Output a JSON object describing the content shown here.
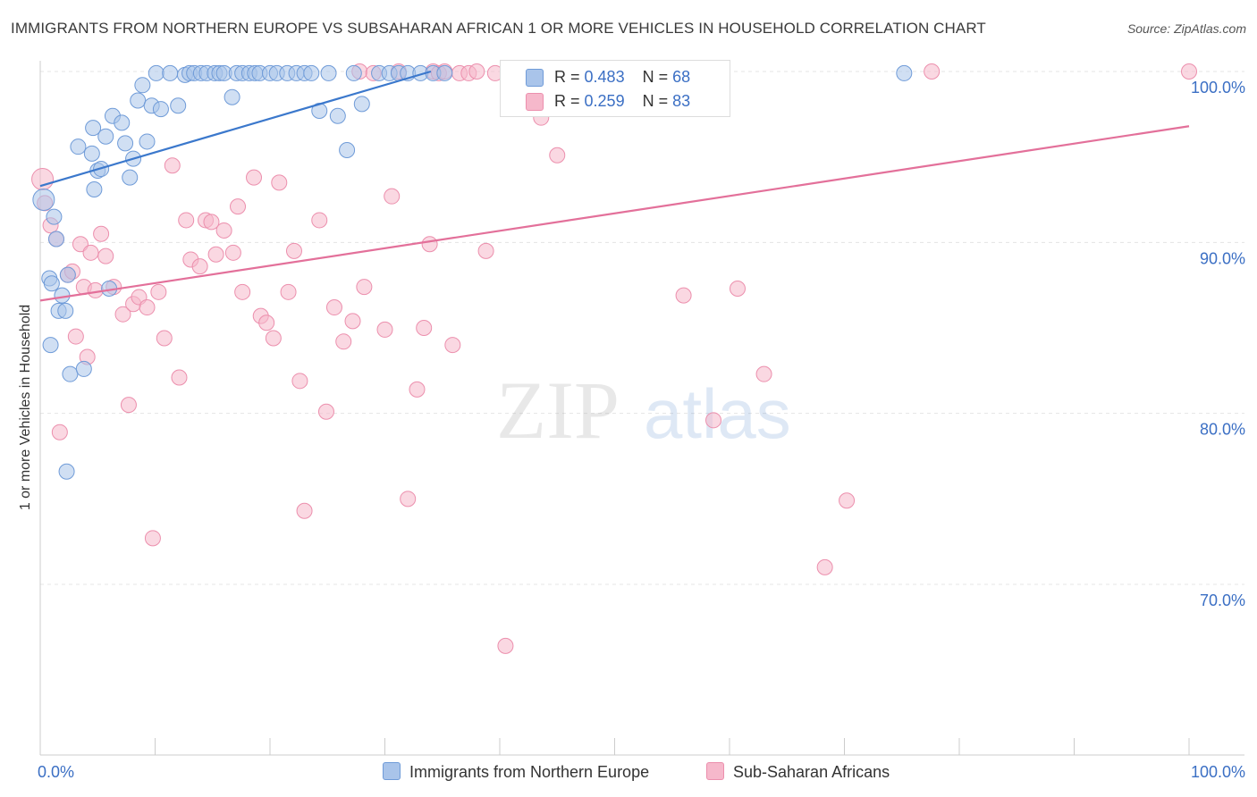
{
  "title": "IMMIGRANTS FROM NORTHERN EUROPE VS SUBSAHARAN AFRICAN 1 OR MORE VEHICLES IN HOUSEHOLD CORRELATION CHART",
  "source": "Source: ZipAtlas.com",
  "watermark": {
    "zip": "ZIP",
    "atlas": "atlas"
  },
  "legend": {
    "rows": [
      {
        "r_label": "R =",
        "r_value": "0.483",
        "n_label": "N =",
        "n_value": "68"
      },
      {
        "r_label": "R =",
        "r_value": "0.259",
        "n_label": "N =",
        "n_value": "83"
      }
    ]
  },
  "bottom_legend": [
    "Immigrants from Northern Europe",
    "Sub-Saharan Africans"
  ],
  "colors": {
    "blue_fill": "#a9c4ea",
    "blue_stroke": "#6f9bd8",
    "blue_line": "#3b78cc",
    "pink_fill": "#f6b8cb",
    "pink_stroke": "#ec8fad",
    "pink_line": "#e3709a",
    "tick_label": "#3b6fc4",
    "grid": "#e4e4e4"
  },
  "chart_data": {
    "type": "scatter",
    "title": "IMMIGRANTS FROM NORTHERN EUROPE VS SUBSAHARAN AFRICAN 1 OR MORE VEHICLES IN HOUSEHOLD CORRELATION CHART",
    "xlabel": "",
    "ylabel": "1 or more Vehicles in Household",
    "x_tick_labels": [
      "0.0%",
      "100.0%"
    ],
    "y_tick_labels": [
      "100.0%",
      "90.0%",
      "80.0%",
      "70.0%"
    ],
    "xlim": [
      0,
      100
    ],
    "ylim": [
      60,
      100
    ],
    "grid": true,
    "legend_position": "top-center",
    "series": [
      {
        "name": "Immigrants from Northern Europe",
        "R": 0.483,
        "N": 68,
        "trend": {
          "x": [
            0,
            34
          ],
          "y": [
            93.3,
            100.0
          ]
        },
        "points": [
          [
            0.3,
            92.5
          ],
          [
            0.8,
            87.9
          ],
          [
            1.0,
            87.6
          ],
          [
            0.9,
            84.0
          ],
          [
            1.2,
            91.5
          ],
          [
            1.4,
            90.2
          ],
          [
            1.6,
            86.0
          ],
          [
            1.9,
            86.9
          ],
          [
            2.2,
            86.0
          ],
          [
            2.4,
            88.1
          ],
          [
            2.6,
            82.3
          ],
          [
            3.3,
            95.6
          ],
          [
            3.8,
            82.6
          ],
          [
            4.5,
            95.2
          ],
          [
            4.6,
            96.7
          ],
          [
            4.7,
            93.1
          ],
          [
            5.0,
            94.2
          ],
          [
            5.3,
            94.3
          ],
          [
            5.7,
            96.2
          ],
          [
            6.0,
            87.3
          ],
          [
            6.3,
            97.4
          ],
          [
            7.1,
            97.0
          ],
          [
            7.4,
            95.8
          ],
          [
            7.8,
            93.8
          ],
          [
            8.1,
            94.9
          ],
          [
            8.5,
            98.3
          ],
          [
            8.9,
            99.2
          ],
          [
            9.3,
            95.9
          ],
          [
            9.7,
            98.0
          ],
          [
            10.1,
            99.9
          ],
          [
            10.5,
            97.8
          ],
          [
            11.3,
            99.9
          ],
          [
            12.0,
            98.0
          ],
          [
            12.6,
            99.8
          ],
          [
            13.0,
            99.9
          ],
          [
            13.4,
            99.9
          ],
          [
            14.0,
            99.9
          ],
          [
            14.5,
            99.9
          ],
          [
            15.2,
            99.9
          ],
          [
            15.6,
            99.9
          ],
          [
            16.0,
            99.9
          ],
          [
            16.7,
            98.5
          ],
          [
            17.1,
            99.9
          ],
          [
            17.6,
            99.9
          ],
          [
            18.2,
            99.9
          ],
          [
            18.7,
            99.9
          ],
          [
            19.1,
            99.9
          ],
          [
            20.0,
            99.9
          ],
          [
            20.6,
            99.9
          ],
          [
            21.5,
            99.9
          ],
          [
            22.3,
            99.9
          ],
          [
            23.0,
            99.9
          ],
          [
            23.6,
            99.9
          ],
          [
            24.3,
            97.7
          ],
          [
            25.1,
            99.9
          ],
          [
            25.9,
            97.4
          ],
          [
            26.7,
            95.4
          ],
          [
            27.3,
            99.9
          ],
          [
            28.0,
            98.1
          ],
          [
            29.5,
            99.9
          ],
          [
            30.4,
            99.9
          ],
          [
            31.2,
            99.9
          ],
          [
            32.0,
            99.9
          ],
          [
            33.1,
            99.9
          ],
          [
            34.2,
            99.9
          ],
          [
            35.2,
            99.9
          ],
          [
            2.3,
            76.6
          ],
          [
            75.2,
            99.9
          ]
        ]
      },
      {
        "name": "Sub-Saharan Africans",
        "R": 0.259,
        "N": 83,
        "trend": {
          "x": [
            0,
            100
          ],
          "y": [
            86.6,
            96.8
          ]
        },
        "points": [
          [
            0.2,
            93.7
          ],
          [
            0.4,
            92.3
          ],
          [
            0.9,
            91.0
          ],
          [
            1.4,
            90.2
          ],
          [
            1.7,
            78.9
          ],
          [
            2.4,
            88.1
          ],
          [
            2.8,
            88.3
          ],
          [
            3.1,
            84.5
          ],
          [
            3.5,
            89.9
          ],
          [
            3.8,
            87.4
          ],
          [
            4.1,
            83.3
          ],
          [
            4.4,
            89.4
          ],
          [
            4.8,
            87.2
          ],
          [
            5.3,
            90.5
          ],
          [
            5.7,
            89.2
          ],
          [
            6.4,
            87.4
          ],
          [
            7.2,
            85.8
          ],
          [
            7.7,
            80.5
          ],
          [
            8.1,
            86.4
          ],
          [
            8.6,
            86.8
          ],
          [
            9.3,
            86.2
          ],
          [
            9.8,
            72.7
          ],
          [
            10.3,
            87.1
          ],
          [
            10.8,
            84.4
          ],
          [
            11.5,
            94.5
          ],
          [
            12.1,
            82.1
          ],
          [
            12.7,
            91.3
          ],
          [
            13.1,
            89.0
          ],
          [
            13.9,
            88.6
          ],
          [
            14.4,
            91.3
          ],
          [
            14.9,
            91.2
          ],
          [
            15.3,
            89.3
          ],
          [
            16.0,
            90.7
          ],
          [
            16.8,
            89.4
          ],
          [
            17.2,
            92.1
          ],
          [
            17.6,
            87.1
          ],
          [
            18.6,
            93.8
          ],
          [
            19.2,
            85.7
          ],
          [
            19.7,
            85.3
          ],
          [
            20.3,
            84.4
          ],
          [
            20.8,
            93.5
          ],
          [
            21.6,
            87.1
          ],
          [
            22.1,
            89.5
          ],
          [
            22.6,
            81.9
          ],
          [
            23.0,
            74.3
          ],
          [
            24.3,
            91.3
          ],
          [
            24.9,
            80.1
          ],
          [
            25.6,
            86.2
          ],
          [
            26.4,
            84.2
          ],
          [
            27.2,
            85.4
          ],
          [
            27.8,
            100.0
          ],
          [
            28.2,
            87.4
          ],
          [
            29.0,
            99.9
          ],
          [
            30.0,
            84.9
          ],
          [
            30.6,
            92.7
          ],
          [
            31.2,
            100.0
          ],
          [
            32.0,
            75.0
          ],
          [
            32.8,
            81.4
          ],
          [
            33.4,
            85.0
          ],
          [
            33.9,
            89.9
          ],
          [
            34.2,
            100.0
          ],
          [
            34.7,
            99.9
          ],
          [
            35.2,
            100.0
          ],
          [
            35.9,
            84.0
          ],
          [
            36.5,
            99.9
          ],
          [
            37.3,
            99.9
          ],
          [
            38.0,
            100.0
          ],
          [
            38.8,
            89.5
          ],
          [
            39.6,
            99.9
          ],
          [
            40.5,
            66.4
          ],
          [
            41.5,
            100.0
          ],
          [
            42.3,
            100.0
          ],
          [
            43.6,
            97.3
          ],
          [
            45.0,
            95.1
          ],
          [
            47.2,
            99.9
          ],
          [
            56.0,
            86.9
          ],
          [
            58.6,
            79.6
          ],
          [
            60.7,
            87.3
          ],
          [
            63.0,
            82.3
          ],
          [
            68.3,
            71.0
          ],
          [
            70.2,
            74.9
          ],
          [
            77.6,
            100.0
          ],
          [
            100.0,
            100.0
          ]
        ]
      }
    ]
  }
}
